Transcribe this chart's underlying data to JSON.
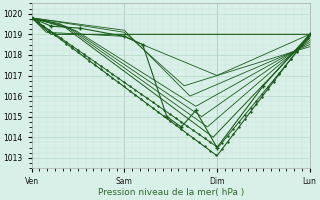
{
  "xlabel": "Pression niveau de la mer( hPa )",
  "bg_color": "#d8f0e8",
  "grid_color_major": "#b8d8c8",
  "grid_color_minor": "#cce4d8",
  "line_color": "#1a5c1a",
  "ylim": [
    1012.5,
    1020.5
  ],
  "yticks": [
    1013,
    1014,
    1015,
    1016,
    1017,
    1018,
    1019,
    1020
  ],
  "xlim": [
    0,
    288
  ],
  "xtick_labels": [
    "Ven",
    "Sam",
    "Dim",
    "Lun"
  ],
  "xtick_positions": [
    0,
    96,
    192,
    288
  ],
  "xlabel_color": "#2d6b2d",
  "xlabel_fontsize": 6.5
}
